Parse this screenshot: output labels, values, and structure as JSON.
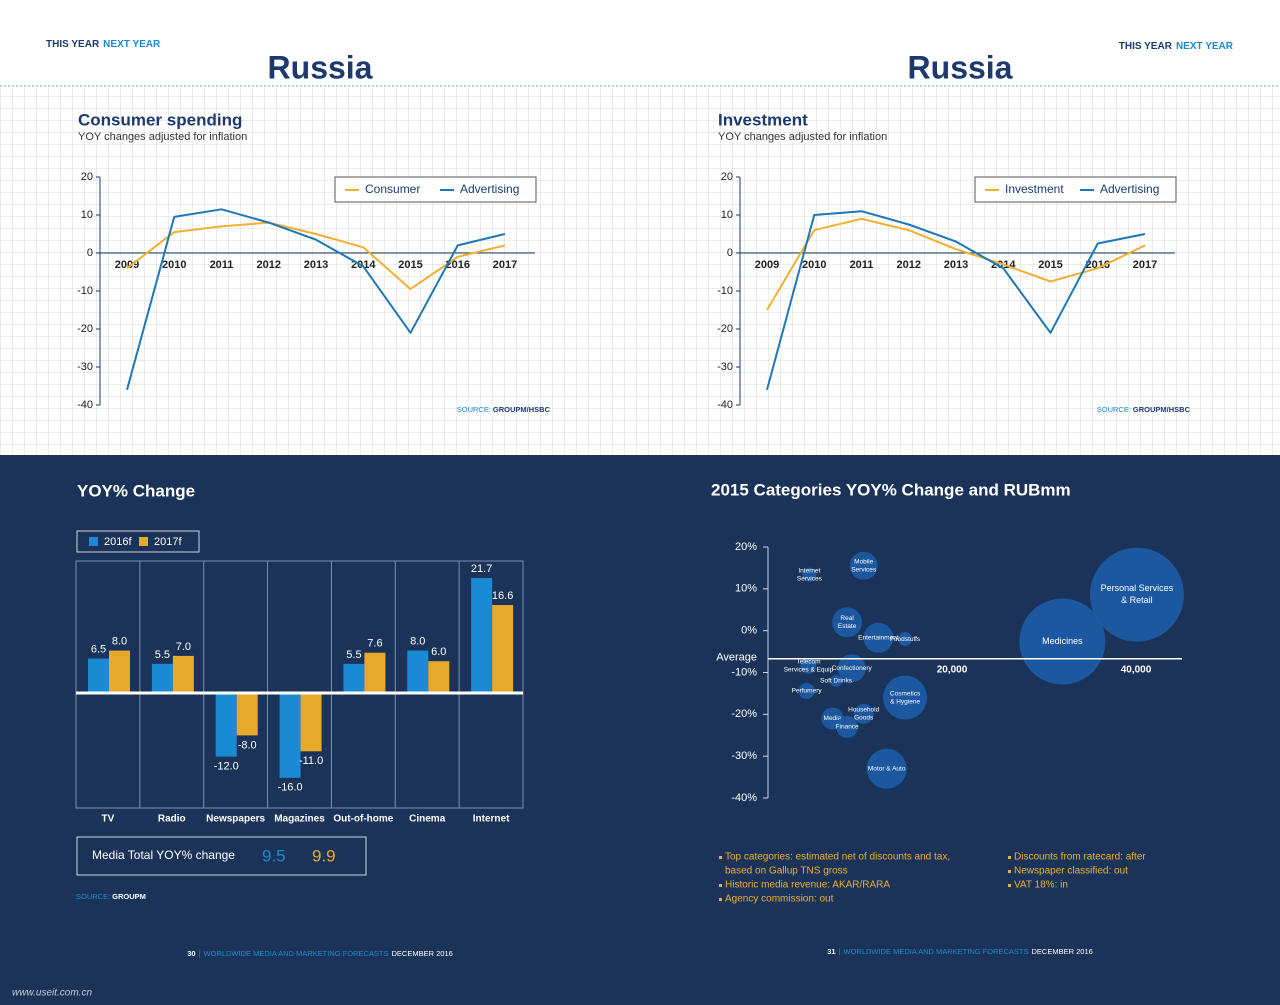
{
  "header": {
    "left": {
      "this_year": "THIS YEAR",
      "next_year": "NEXT YEAR",
      "title": "Russia"
    },
    "right": {
      "this_year": "THIS YEAR",
      "next_year": "NEXT YEAR",
      "title": "Russia"
    }
  },
  "chart_data": [
    {
      "type": "line",
      "title": "Consumer spending",
      "subtitle": "YOY changes adjusted for inflation",
      "categories": [
        "2009",
        "2010",
        "2011",
        "2012",
        "2013",
        "2014",
        "2015",
        "2016",
        "2017"
      ],
      "series": [
        {
          "name": "Consumer",
          "color": "#f0b030",
          "values": [
            -4,
            5.5,
            7,
            8,
            5,
            1.5,
            -9.5,
            -1,
            2
          ]
        },
        {
          "name": "Advertising",
          "color": "#1d77b8",
          "values": [
            -36,
            9.5,
            11.5,
            8,
            3.5,
            -3.5,
            -21,
            2,
            5
          ]
        }
      ],
      "ylim": [
        -40,
        20
      ],
      "yticks": [
        -40,
        -30,
        -20,
        -10,
        0,
        10,
        20
      ],
      "source": {
        "label": "SOURCE:",
        "name": "GROUPM/HSBC"
      }
    },
    {
      "type": "line",
      "title": "Investment",
      "subtitle": "YOY changes adjusted for inflation",
      "categories": [
        "2009",
        "2010",
        "2011",
        "2012",
        "2013",
        "2014",
        "2015",
        "2016",
        "2017"
      ],
      "series": [
        {
          "name": "Investment",
          "color": "#f0b030",
          "values": [
            -15,
            6,
            9,
            6,
            1,
            -3,
            -7.5,
            -4,
            2
          ]
        },
        {
          "name": "Advertising",
          "color": "#1d77b8",
          "values": [
            -36,
            10,
            11,
            7.5,
            3,
            -4,
            -21,
            2.5,
            5
          ]
        }
      ],
      "ylim": [
        -40,
        20
      ],
      "yticks": [
        -40,
        -30,
        -20,
        -10,
        0,
        10,
        20
      ],
      "source": {
        "label": "SOURCE:",
        "name": "GROUPM/HSBC"
      }
    },
    {
      "type": "bar",
      "title": "YOY% Change",
      "categories": [
        "TV",
        "Radio",
        "Newspapers",
        "Magazines",
        "Out-of-home",
        "Cinema",
        "Internet"
      ],
      "series": [
        {
          "name": "2016f",
          "color": "#1a8ad4",
          "values": [
            6.5,
            5.5,
            -12,
            -16,
            5.5,
            8,
            21.7
          ],
          "value_labels": [
            "6.5",
            "5.5",
            "-12.0",
            "-16.0",
            "5.5",
            "8.0",
            "21.7"
          ]
        },
        {
          "name": "2017f",
          "color": "#e8a92a",
          "values": [
            8,
            7,
            -8,
            -11,
            7.6,
            6,
            16.6
          ],
          "value_labels": [
            "8.0",
            "7.0",
            "-8.0",
            "-11.0",
            "7.6",
            "6.0",
            "16.6"
          ]
        }
      ],
      "total": {
        "label": "Media Total YOY% change",
        "values": [
          9.5,
          9.9
        ]
      },
      "source": {
        "label": "SOURCE:",
        "name": "GROUPM"
      }
    },
    {
      "type": "bubble",
      "title": "2015 Categories YOY% Change and RUBmm",
      "color": "#1d5ca8",
      "labels": [
        [
          "Internet",
          "Services"
        ],
        [
          "Mobile",
          "Services"
        ],
        [
          "Real",
          "Estate"
        ],
        [
          "Entertainment"
        ],
        [
          "Foodstuffs"
        ],
        [
          "Medicines"
        ],
        [
          "Personal Services",
          "& Retail"
        ],
        [
          "Telecom",
          "Services & Equip"
        ],
        [
          "Confectionery"
        ],
        [
          "Soft Drinks"
        ],
        [
          "Perfumery"
        ],
        [
          "Cosmetics",
          "& Hygiene"
        ],
        [
          "Household",
          "Goods"
        ],
        [
          "Media"
        ],
        [
          "Finance"
        ],
        [
          "Motor & Auto"
        ]
      ],
      "x": [
        4500,
        10400,
        8600,
        12000,
        14900,
        32000,
        40100,
        4400,
        9100,
        7400,
        4200,
        14900,
        10400,
        7000,
        8600,
        12900
      ],
      "values": [
        13.4,
        15.5,
        2,
        -1.7,
        -2,
        -2.6,
        8.6,
        -8.4,
        -9,
        -12,
        -14.4,
        -16,
        -19.9,
        -21,
        -23,
        -33
      ],
      "sizes": [
        12,
        49,
        56,
        56,
        12,
        462,
        552,
        16,
        49,
        9,
        16,
        121,
        25,
        30,
        30,
        100
      ],
      "average": {
        "label": "Average",
        "value": -6.7
      },
      "xlim": [
        0,
        45000
      ],
      "xticks": [
        {
          "value": 20000,
          "label": "20,000"
        },
        {
          "value": 40000,
          "label": "40,000"
        }
      ],
      "ylim": [
        -40,
        20
      ],
      "yticks": [
        {
          "value": -40,
          "label": "-40%"
        },
        {
          "value": -30,
          "label": "-30%"
        },
        {
          "value": -20,
          "label": "-20%"
        },
        {
          "value": -10,
          "label": "-10%"
        },
        {
          "value": 0,
          "label": "0%"
        },
        {
          "value": 10,
          "label": "10%"
        },
        {
          "value": 20,
          "label": "20%"
        }
      ]
    }
  ],
  "notes": {
    "left": [
      [
        "Top categories: estimated net of discounts and tax,",
        "based on Gallup TNS gross"
      ],
      [
        "Historic media revenue: AKAR/RARA"
      ],
      [
        "Agency commission: out"
      ]
    ],
    "right": [
      [
        "Discounts from ratecard: after"
      ],
      [
        "Newspaper classified: out"
      ],
      [
        "VAT 18%: in"
      ]
    ]
  },
  "footer": {
    "left": {
      "page": "30",
      "separator": "|",
      "publication": "WORLDWIDE MEDIA AND MARKETING FORECASTS",
      "date": "DECEMBER 2016"
    },
    "right": {
      "page": "31",
      "separator": "|",
      "publication": "WORLDWIDE MEDIA AND MARKETING FORECASTS",
      "date": "DECEMBER 2016"
    }
  },
  "watermark": "www.useit.com.cn"
}
